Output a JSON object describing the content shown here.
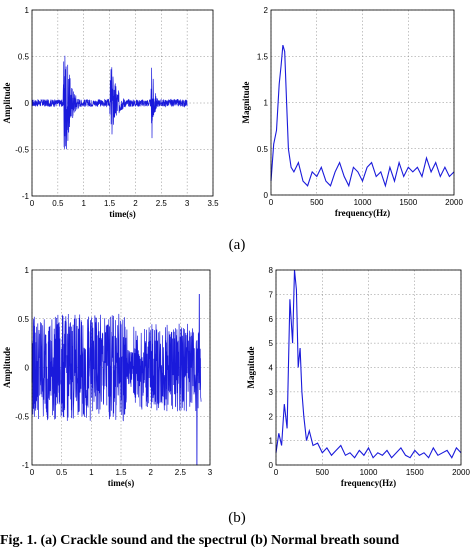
{
  "panel_labels": [
    "(a)",
    "(b)"
  ],
  "caption": "Fig. 1. (a) Crackle sound and the spectrul (b) Normal breath sound",
  "chart_data": [
    {
      "type": "line",
      "xlabel": "time(s)",
      "ylabel": "Amplitude",
      "xlim": [
        0,
        3.5
      ],
      "ylim": [
        -1,
        1
      ],
      "xticks": [
        0,
        0.5,
        1,
        1.5,
        2,
        2.5,
        3,
        3.5
      ],
      "yticks": [
        -1,
        -0.5,
        0,
        0.5,
        1
      ],
      "xtick_labels": [
        "0",
        "0.5",
        "1",
        "1.5",
        "2",
        "2.5",
        "3",
        "3.5"
      ],
      "ytick_labels": [
        "-1",
        "-0.5",
        "0",
        "0.5",
        "1"
      ],
      "grid": true,
      "signal": {
        "duration": 3.0,
        "noise_level": 0.04,
        "bursts": [
          {
            "t0": 0.6,
            "t1": 0.92,
            "amp": 1.0
          },
          {
            "t0": 1.5,
            "t1": 1.85,
            "amp": 0.6
          },
          {
            "t0": 2.3,
            "t1": 2.45,
            "amp": 0.62
          }
        ]
      }
    },
    {
      "type": "line",
      "xlabel": "frequency(Hz)",
      "ylabel": "Magnitude",
      "xlim": [
        0,
        2000
      ],
      "ylim": [
        0,
        2
      ],
      "xticks": [
        0,
        500,
        1000,
        1500,
        2000
      ],
      "yticks": [
        0,
        0.5,
        1,
        1.5,
        2
      ],
      "xtick_labels": [
        "0",
        "500",
        "1000",
        "1500",
        "2000"
      ],
      "ytick_labels": [
        "0",
        "0.5",
        "1",
        "1.5",
        "2"
      ],
      "grid": true,
      "series": [
        {
          "x": [
            0,
            30,
            60,
            90,
            110,
            130,
            150,
            170,
            190,
            220,
            250,
            300,
            350,
            400,
            450,
            500,
            550,
            600,
            650,
            700,
            750,
            800,
            850,
            900,
            950,
            1000,
            1050,
            1100,
            1150,
            1200,
            1250,
            1300,
            1350,
            1400,
            1450,
            1500,
            1550,
            1600,
            1650,
            1700,
            1750,
            1800,
            1850,
            1900,
            1950,
            2000
          ],
          "y": [
            0.15,
            0.55,
            0.7,
            1.2,
            1.4,
            1.62,
            1.55,
            1.0,
            0.5,
            0.3,
            0.25,
            0.35,
            0.15,
            0.1,
            0.25,
            0.2,
            0.3,
            0.15,
            0.1,
            0.25,
            0.35,
            0.2,
            0.1,
            0.3,
            0.25,
            0.15,
            0.3,
            0.35,
            0.2,
            0.25,
            0.1,
            0.3,
            0.15,
            0.35,
            0.2,
            0.3,
            0.25,
            0.3,
            0.2,
            0.4,
            0.25,
            0.35,
            0.2,
            0.3,
            0.2,
            0.25
          ]
        }
      ]
    },
    {
      "type": "line",
      "xlabel": "time(s)",
      "ylabel": "Amplitude",
      "xlim": [
        0,
        3
      ],
      "ylim": [
        -1,
        1
      ],
      "xticks": [
        0,
        0.5,
        1,
        1.5,
        2,
        2.5,
        3
      ],
      "yticks": [
        -1,
        -0.5,
        0,
        0.5,
        1
      ],
      "xtick_labels": [
        "0",
        "0.5",
        "1",
        "1.5",
        "2",
        "2.5",
        "3"
      ],
      "ytick_labels": [
        "-1",
        "-0.5",
        "0",
        "0.5",
        "1"
      ],
      "grid": true,
      "signal": {
        "duration": 2.85,
        "segments": [
          {
            "t0": 0.0,
            "t1": 1.6,
            "amp": 0.55
          },
          {
            "t0": 1.6,
            "t1": 1.7,
            "amp": 0.2
          },
          {
            "t0": 1.7,
            "t1": 2.85,
            "amp": 0.45
          }
        ],
        "spikes": [
          {
            "t": 2.78,
            "amp": -1.0
          },
          {
            "t": 2.82,
            "amp": 0.75
          }
        ]
      }
    },
    {
      "type": "line",
      "xlabel": "frequency(Hz)",
      "ylabel": "Magnitude",
      "xlim": [
        0,
        2000
      ],
      "ylim": [
        0,
        8
      ],
      "xticks": [
        0,
        500,
        1000,
        1500,
        2000
      ],
      "yticks": [
        0,
        1,
        2,
        3,
        4,
        5,
        6,
        7,
        8
      ],
      "xtick_labels": [
        "0",
        "500",
        "1000",
        "1500",
        "2000"
      ],
      "ytick_labels": [
        "0",
        "1",
        "2",
        "3",
        "4",
        "5",
        "6",
        "7",
        "8"
      ],
      "grid": true,
      "series": [
        {
          "x": [
            0,
            30,
            60,
            90,
            120,
            150,
            180,
            200,
            220,
            240,
            260,
            280,
            300,
            330,
            360,
            400,
            450,
            500,
            550,
            600,
            650,
            700,
            750,
            800,
            850,
            900,
            950,
            1000,
            1050,
            1100,
            1150,
            1200,
            1250,
            1300,
            1350,
            1400,
            1450,
            1500,
            1550,
            1600,
            1650,
            1700,
            1750,
            1800,
            1850,
            1900,
            1950,
            2000
          ],
          "y": [
            0.5,
            1.3,
            0.8,
            2.5,
            1.5,
            6.8,
            5.0,
            8.0,
            7.2,
            4.0,
            4.8,
            3.0,
            2.0,
            1.0,
            1.4,
            0.8,
            0.9,
            0.5,
            0.7,
            0.4,
            0.6,
            0.8,
            0.4,
            0.5,
            0.3,
            0.6,
            0.4,
            0.7,
            0.3,
            0.5,
            0.4,
            0.6,
            0.3,
            0.5,
            0.7,
            0.4,
            0.3,
            0.6,
            0.4,
            0.5,
            0.3,
            0.7,
            0.4,
            0.5,
            0.6,
            0.3,
            0.7,
            0.5
          ]
        }
      ]
    }
  ]
}
